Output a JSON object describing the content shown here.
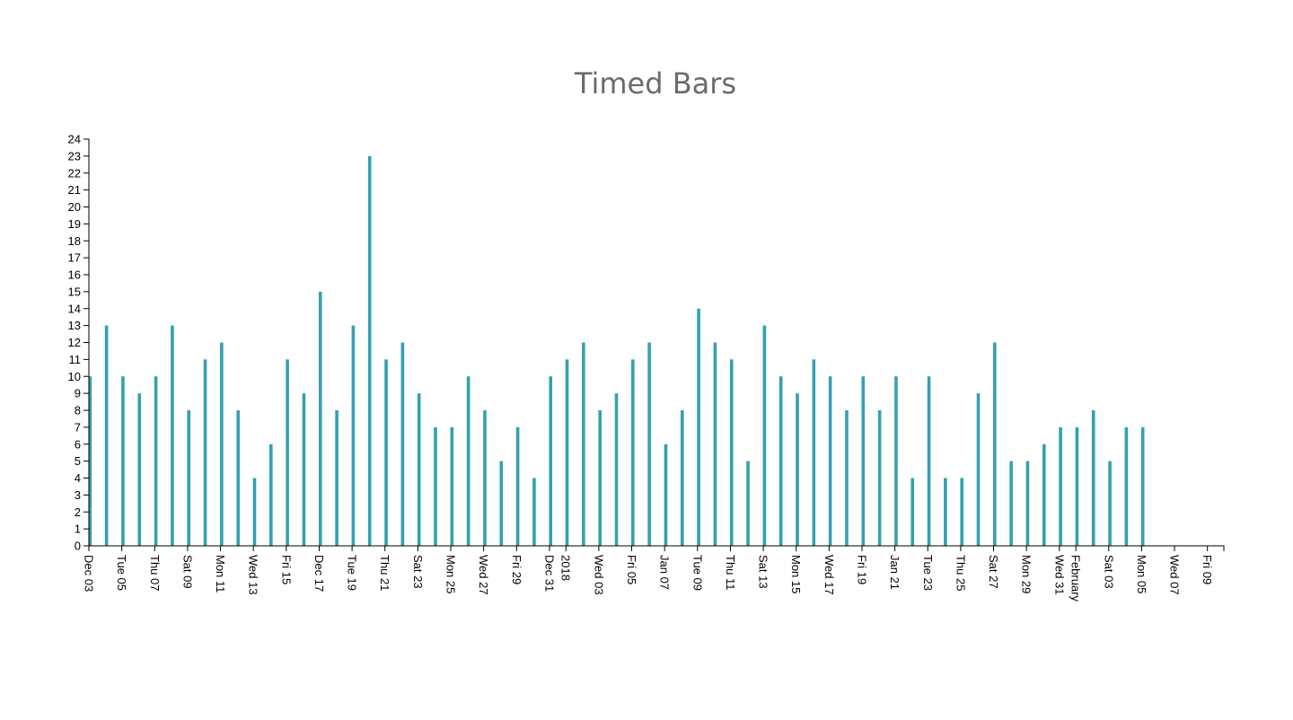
{
  "colors": {
    "bar": "#35a0b0",
    "axis": "#000000",
    "title": "#6b6b6b"
  },
  "chart_data": {
    "type": "bar",
    "title": "Timed Bars",
    "xlabel": "",
    "ylabel": "",
    "ylim": [
      0,
      24
    ],
    "y_ticks": [
      0,
      1,
      2,
      3,
      4,
      5,
      6,
      7,
      8,
      9,
      10,
      11,
      12,
      13,
      14,
      15,
      16,
      17,
      18,
      19,
      20,
      21,
      22,
      23,
      24
    ],
    "xlim": [
      "2017-12-03",
      "2018-02-10"
    ],
    "x_tick_labels": [
      {
        "date": "2017-12-03",
        "label": "Dec 03"
      },
      {
        "date": "2017-12-05",
        "label": "Tue 05"
      },
      {
        "date": "2017-12-07",
        "label": "Thu 07"
      },
      {
        "date": "2017-12-09",
        "label": "Sat 09"
      },
      {
        "date": "2017-12-11",
        "label": "Mon 11"
      },
      {
        "date": "2017-12-13",
        "label": "Wed 13"
      },
      {
        "date": "2017-12-15",
        "label": "Fri 15"
      },
      {
        "date": "2017-12-17",
        "label": "Dec 17"
      },
      {
        "date": "2017-12-19",
        "label": "Tue 19"
      },
      {
        "date": "2017-12-21",
        "label": "Thu 21"
      },
      {
        "date": "2017-12-23",
        "label": "Sat 23"
      },
      {
        "date": "2017-12-25",
        "label": "Mon 25"
      },
      {
        "date": "2017-12-27",
        "label": "Wed 27"
      },
      {
        "date": "2017-12-29",
        "label": "Fri 29"
      },
      {
        "date": "2017-12-31",
        "label": "Dec 31"
      },
      {
        "date": "2018-01-01",
        "label": "2018"
      },
      {
        "date": "2018-01-03",
        "label": "Wed 03"
      },
      {
        "date": "2018-01-05",
        "label": "Fri 05"
      },
      {
        "date": "2018-01-07",
        "label": "Jan 07"
      },
      {
        "date": "2018-01-09",
        "label": "Tue 09"
      },
      {
        "date": "2018-01-11",
        "label": "Thu 11"
      },
      {
        "date": "2018-01-13",
        "label": "Sat 13"
      },
      {
        "date": "2018-01-15",
        "label": "Mon 15"
      },
      {
        "date": "2018-01-17",
        "label": "Wed 17"
      },
      {
        "date": "2018-01-19",
        "label": "Fri 19"
      },
      {
        "date": "2018-01-21",
        "label": "Jan 21"
      },
      {
        "date": "2018-01-23",
        "label": "Tue 23"
      },
      {
        "date": "2018-01-25",
        "label": "Thu 25"
      },
      {
        "date": "2018-01-27",
        "label": "Sat 27"
      },
      {
        "date": "2018-01-29",
        "label": "Mon 29"
      },
      {
        "date": "2018-01-31",
        "label": "Wed 31"
      },
      {
        "date": "2018-02-01",
        "label": "February"
      },
      {
        "date": "2018-02-03",
        "label": "Sat 03"
      },
      {
        "date": "2018-02-05",
        "label": "Mon 05"
      },
      {
        "date": "2018-02-07",
        "label": "Wed 07"
      },
      {
        "date": "2018-02-09",
        "label": "Fri 09"
      }
    ],
    "x": [
      "2017-12-03",
      "2017-12-04",
      "2017-12-05",
      "2017-12-06",
      "2017-12-07",
      "2017-12-08",
      "2017-12-09",
      "2017-12-10",
      "2017-12-11",
      "2017-12-12",
      "2017-12-13",
      "2017-12-14",
      "2017-12-15",
      "2017-12-16",
      "2017-12-17",
      "2017-12-18",
      "2017-12-19",
      "2017-12-20",
      "2017-12-21",
      "2017-12-22",
      "2017-12-23",
      "2017-12-24",
      "2017-12-25",
      "2017-12-26",
      "2017-12-27",
      "2017-12-28",
      "2017-12-29",
      "2017-12-30",
      "2017-12-31",
      "2018-01-01",
      "2018-01-02",
      "2018-01-03",
      "2018-01-04",
      "2018-01-05",
      "2018-01-06",
      "2018-01-07",
      "2018-01-08",
      "2018-01-09",
      "2018-01-10",
      "2018-01-11",
      "2018-01-12",
      "2018-01-13",
      "2018-01-14",
      "2018-01-15",
      "2018-01-16",
      "2018-01-17",
      "2018-01-18",
      "2018-01-19",
      "2018-01-20",
      "2018-01-21",
      "2018-01-22",
      "2018-01-23",
      "2018-01-24",
      "2018-01-25",
      "2018-01-26",
      "2018-01-27",
      "2018-01-28",
      "2018-01-29",
      "2018-01-30",
      "2018-01-31",
      "2018-02-01",
      "2018-02-02",
      "2018-02-03",
      "2018-02-04",
      "2018-02-05"
    ],
    "values": [
      10,
      13,
      10,
      9,
      10,
      13,
      8,
      11,
      12,
      8,
      4,
      6,
      11,
      9,
      15,
      8,
      13,
      23,
      11,
      12,
      9,
      7,
      7,
      10,
      8,
      5,
      7,
      4,
      10,
      11,
      12,
      8,
      9,
      11,
      12,
      6,
      8,
      14,
      12,
      11,
      5,
      13,
      10,
      9,
      11,
      10,
      8,
      10,
      8,
      10,
      4,
      10,
      4,
      4,
      9,
      12,
      5,
      5,
      6,
      7,
      7,
      8,
      5,
      7,
      7
    ]
  }
}
